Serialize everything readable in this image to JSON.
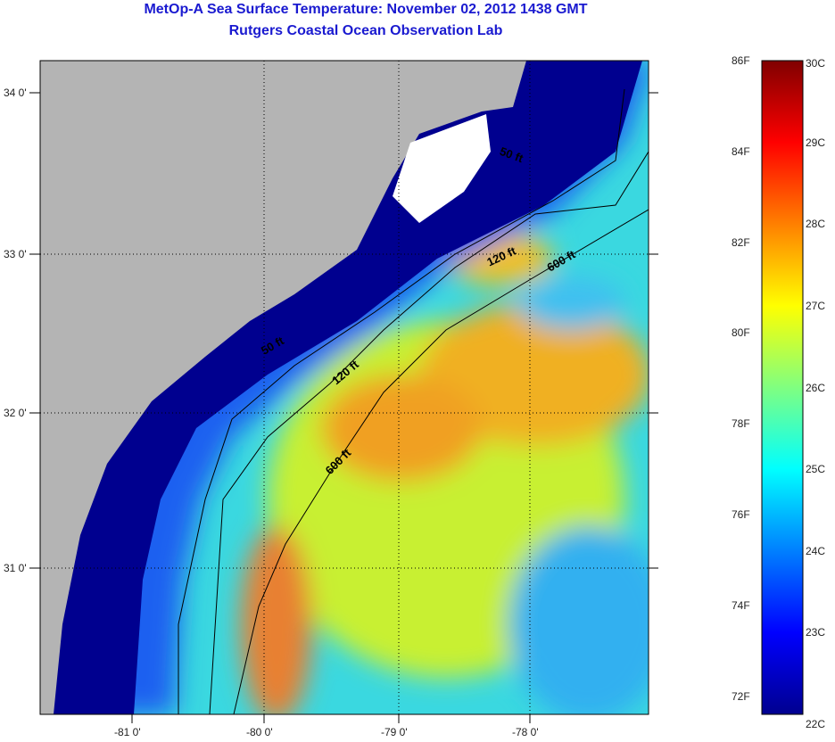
{
  "title": "MetOp-A Sea Surface Temperature:  November 02, 2012 1438 GMT",
  "subtitle": "Rutgers Coastal Ocean Observation Lab",
  "chart_data": {
    "type": "heatmap",
    "title": "MetOp-A Sea Surface Temperature:  November 02, 2012 1438 GMT",
    "lat_ticks": [
      "34 0'",
      "33 0'",
      "32 0'",
      "31 0'"
    ],
    "lon_ticks": [
      "-81 0'",
      "-80 0'",
      "-79 0'",
      "-78 0'"
    ],
    "lat_range": [
      30.2,
      34.2
    ],
    "lon_range": [
      -81.7,
      -77.2
    ],
    "colorbar": {
      "celsius_ticks": [
        "30C",
        "29C",
        "28C",
        "27C",
        "26C",
        "25C",
        "24C",
        "23C",
        "22C"
      ],
      "fahrenheit_ticks": [
        "86F",
        "84F",
        "82F",
        "80F",
        "78F",
        "76F",
        "74F",
        "72F"
      ],
      "range_c": [
        22,
        30
      ],
      "colormap": "jet"
    },
    "contour_labels": [
      "50 ft",
      "120 ft",
      "600 ft",
      "50 ft",
      "120 ft",
      "600 ft"
    ]
  },
  "colors": {
    "land": "#b4b4b4",
    "title": "#1a1ad0"
  }
}
